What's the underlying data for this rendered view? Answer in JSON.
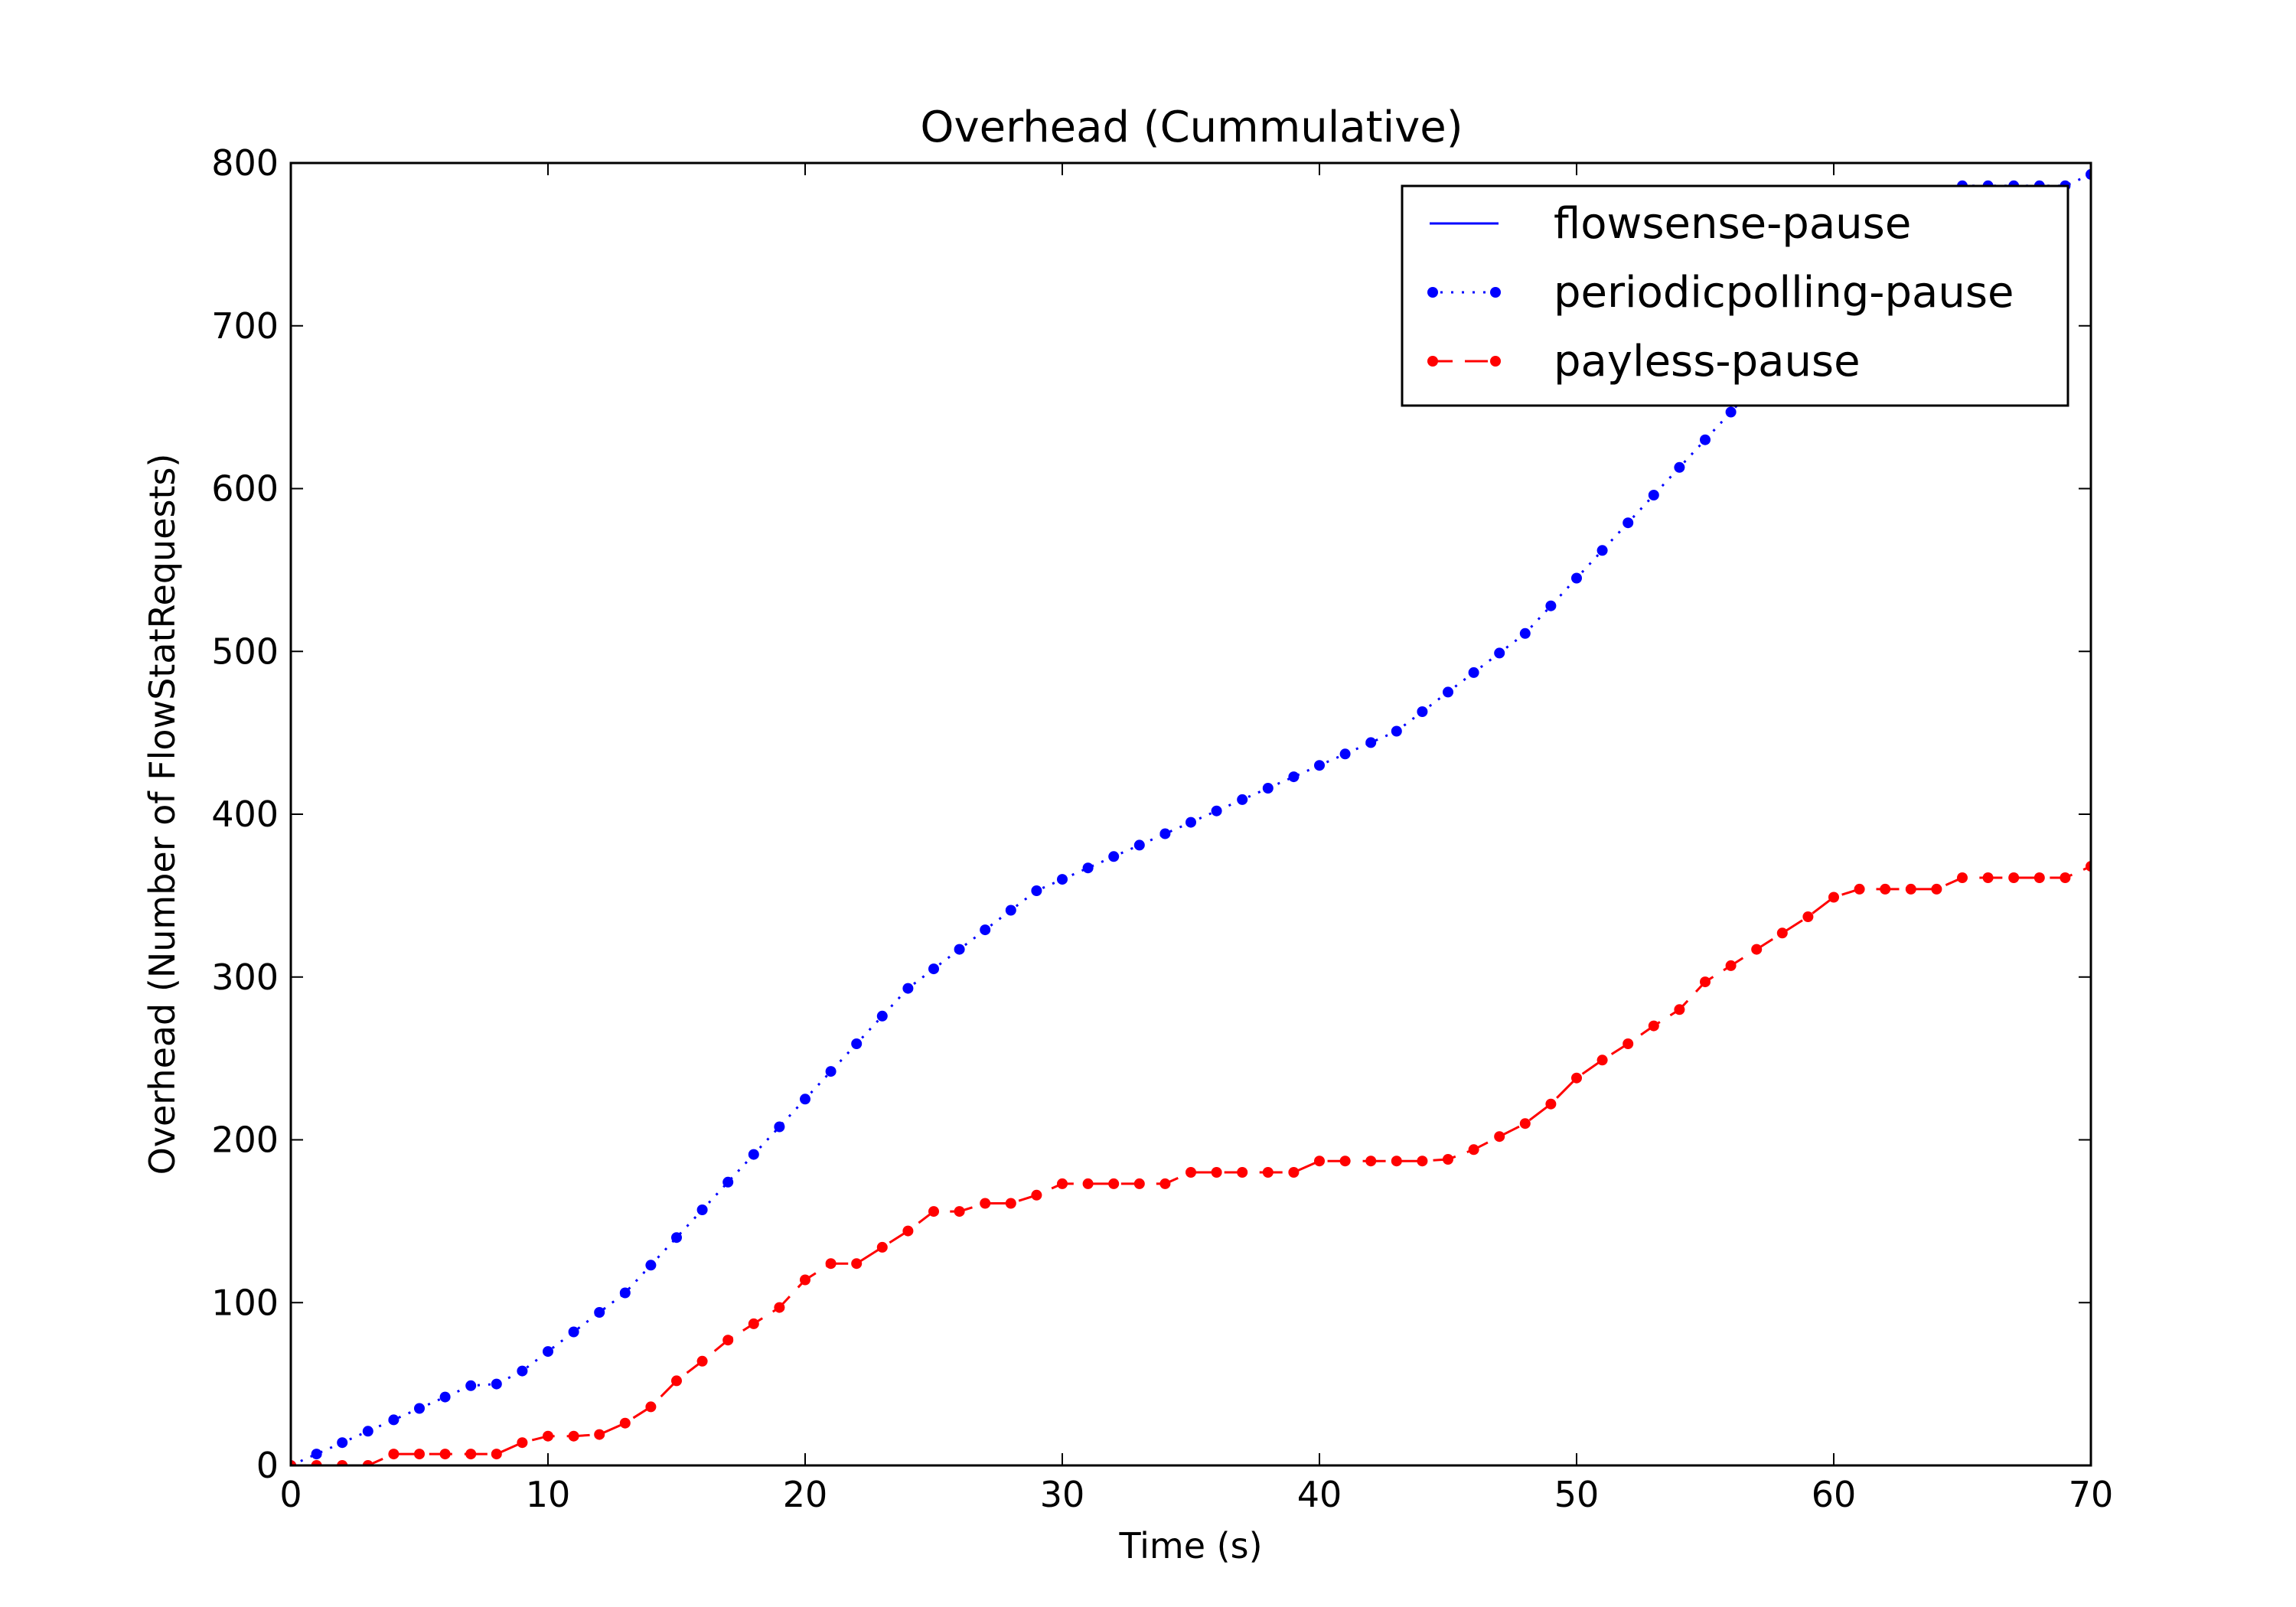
{
  "chart_data": {
    "type": "line",
    "title": "Overhead (Cummulative)",
    "xlabel": "Time (s)",
    "ylabel": "Overhead (Number of FlowStatRequests)",
    "xlim": [
      0,
      70
    ],
    "ylim": [
      0,
      800
    ],
    "xticks": [
      0,
      10,
      20,
      30,
      40,
      50,
      60,
      70
    ],
    "yticks": [
      0,
      100,
      200,
      300,
      400,
      500,
      600,
      700,
      800
    ],
    "grid": false,
    "legend_position": "top-right",
    "series": [
      {
        "name": "flowsense-pause",
        "color": "#0000ff",
        "line_style": "solid",
        "marker": "none",
        "x": [],
        "y": []
      },
      {
        "name": "periodicpolling-pause",
        "color": "#0000ff",
        "line_style": "dotted",
        "marker": "point",
        "x": [
          0,
          1,
          2,
          3,
          4,
          5,
          6,
          7,
          8,
          9,
          10,
          11,
          12,
          13,
          14,
          15,
          16,
          17,
          18,
          19,
          20,
          21,
          22,
          23,
          24,
          25,
          26,
          27,
          28,
          29,
          30,
          31,
          32,
          33,
          34,
          35,
          36,
          37,
          38,
          39,
          40,
          41,
          42,
          43,
          44,
          45,
          46,
          47,
          48,
          49,
          50,
          51,
          52,
          53,
          54,
          55,
          56,
          57,
          58,
          59,
          60,
          61,
          62,
          63,
          64,
          65,
          66,
          67,
          68,
          69,
          70
        ],
        "y": [
          0,
          7,
          14,
          21,
          28,
          35,
          42,
          49,
          50,
          58,
          70,
          82,
          94,
          106,
          123,
          140,
          157,
          174,
          191,
          208,
          225,
          242,
          259,
          276,
          293,
          305,
          317,
          329,
          341,
          353,
          360,
          367,
          374,
          381,
          388,
          395,
          402,
          409,
          416,
          423,
          430,
          437,
          444,
          451,
          463,
          475,
          487,
          499,
          511,
          528,
          545,
          562,
          579,
          596,
          613,
          630,
          647,
          664,
          681,
          698,
          715,
          732,
          749,
          766,
          783,
          786,
          786,
          786,
          786,
          786,
          793
        ]
      },
      {
        "name": "payless-pause",
        "color": "#ff0000",
        "line_style": "dashed",
        "marker": "point",
        "x": [
          0,
          1,
          2,
          3,
          4,
          5,
          6,
          7,
          8,
          9,
          10,
          11,
          12,
          13,
          14,
          15,
          16,
          17,
          18,
          19,
          20,
          21,
          22,
          23,
          24,
          25,
          26,
          27,
          28,
          29,
          30,
          31,
          32,
          33,
          34,
          35,
          36,
          37,
          38,
          39,
          40,
          41,
          42,
          43,
          44,
          45,
          46,
          47,
          48,
          49,
          50,
          51,
          52,
          53,
          54,
          55,
          56,
          57,
          58,
          59,
          60,
          61,
          62,
          63,
          64,
          65,
          66,
          67,
          68,
          69,
          70
        ],
        "y": [
          0,
          0,
          0,
          0,
          7,
          7,
          7,
          7,
          7,
          14,
          18,
          18,
          19,
          26,
          36,
          52,
          64,
          77,
          87,
          97,
          114,
          124,
          124,
          134,
          144,
          156,
          156,
          161,
          161,
          166,
          173,
          173,
          173,
          173,
          173,
          180,
          180,
          180,
          180,
          180,
          187,
          187,
          187,
          187,
          187,
          188,
          194,
          202,
          210,
          222,
          238,
          249,
          259,
          270,
          280,
          297,
          307,
          317,
          327,
          337,
          349,
          354,
          354,
          354,
          354,
          361,
          361,
          361,
          361,
          361,
          368
        ]
      }
    ]
  }
}
